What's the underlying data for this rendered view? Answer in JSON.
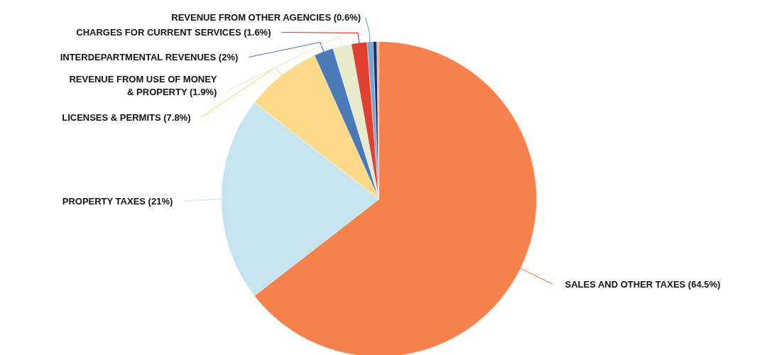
{
  "chart_data": {
    "type": "pie",
    "categories": [
      "SALES AND OTHER TAXES (64.5%)",
      "PROPERTY TAXES (21%)",
      "LICENSES & PERMITS (7.8%)",
      "INTERDEPARTMENTAL REVENUES (2%)",
      "REVENUE FROM USE OF MONEY\n& PROPERTY (1.9%)",
      "CHARGES FOR CURRENT SERVICES (1.6%)",
      "REVENUE FROM OTHER AGENCIES (0.6%)",
      null,
      null
    ],
    "values": [
      64.5,
      21,
      7.8,
      2,
      1.9,
      1.6,
      0.6,
      0.4,
      0.2
    ],
    "colors": [
      "#f5814c",
      "#c5e4ee",
      "#fdd98a",
      "#4a7ab8",
      "#e9e9cc",
      "#e0402f",
      "#71a7d3",
      "#1f2f6b",
      "#f7a87a"
    ]
  }
}
